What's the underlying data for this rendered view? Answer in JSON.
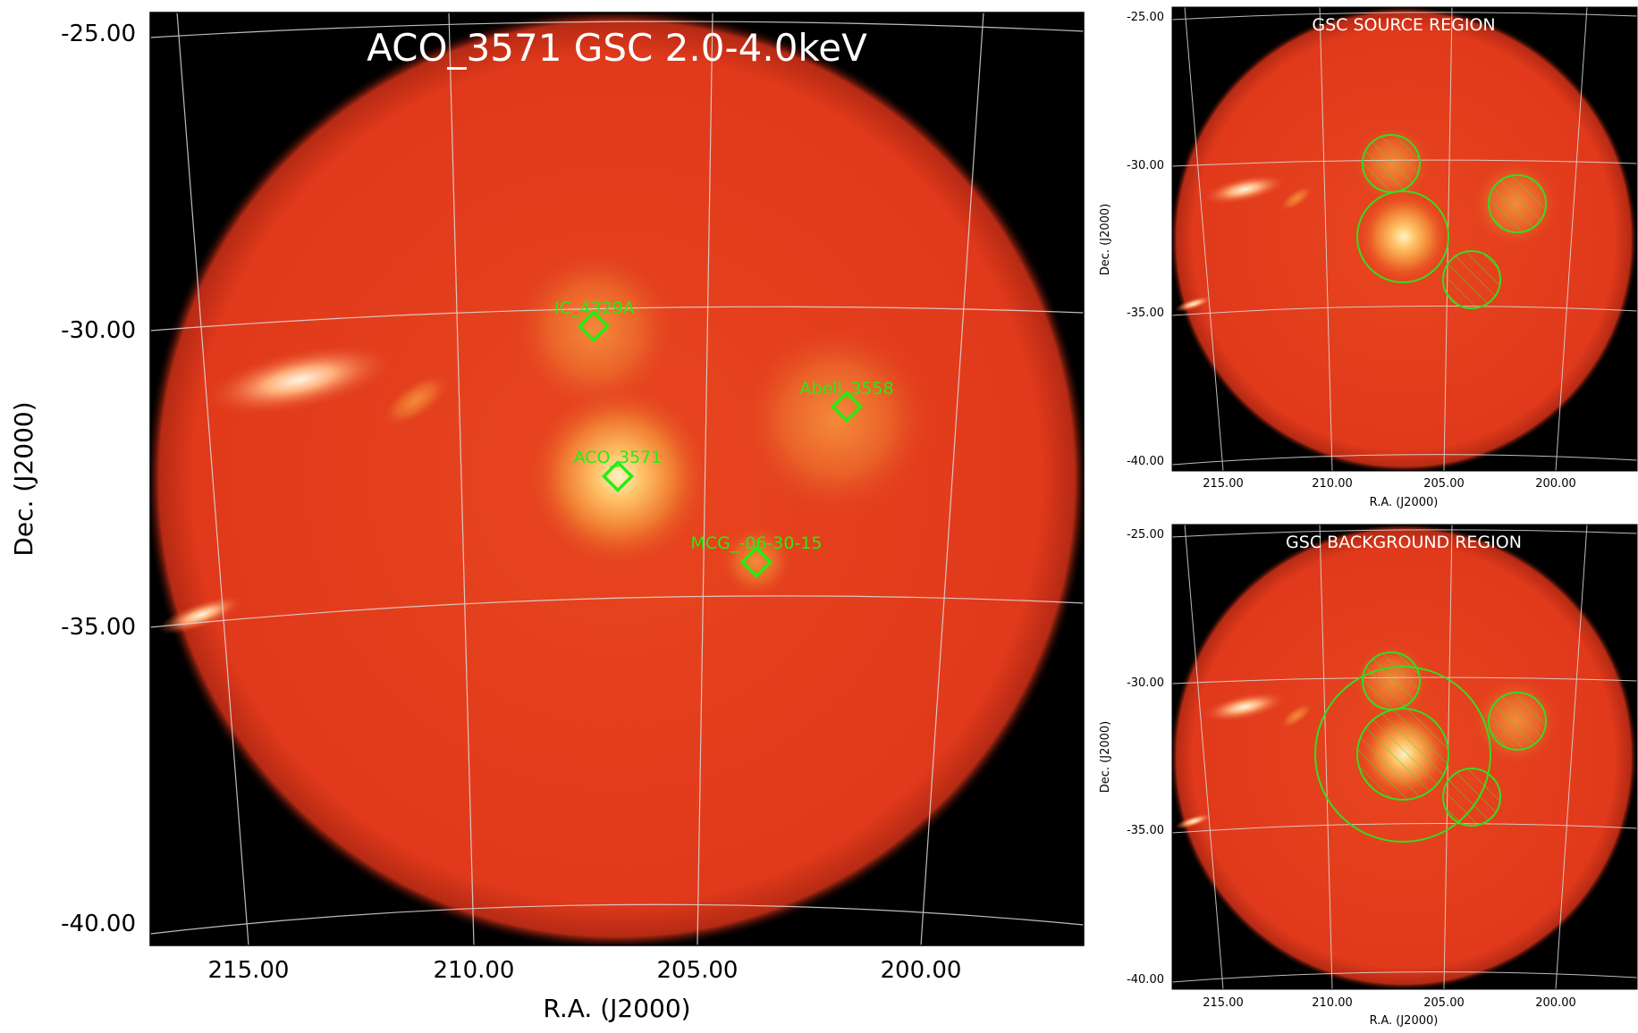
{
  "main_panel": {
    "title": "ACO_3571 GSC 2.0-4.0keV",
    "xlabel": "R.A. (J2000)",
    "ylabel": "Dec. (J2000)",
    "ra_ticks": [
      "215.00",
      "210.00",
      "205.00",
      "200.00"
    ],
    "dec_ticks": [
      "-25.00",
      "-30.00",
      "-35.00",
      "-40.00"
    ],
    "source_labels": [
      "IC_4329A",
      "Abell_3558",
      "ACO_3571",
      "MCG_-06-30-15"
    ],
    "marker_color": "#22ee11"
  },
  "source_panel": {
    "title": "GSC SOURCE REGION",
    "xlabel": "R.A. (J2000)",
    "ylabel": "Dec. (J2000)",
    "ra_ticks": [
      "215.00",
      "210.00",
      "205.00",
      "200.00"
    ],
    "dec_ticks": [
      "-25.00",
      "-30.00",
      "-35.00",
      "-40.00"
    ]
  },
  "background_panel": {
    "title": "GSC BACKGROUND REGION",
    "xlabel": "R.A. (J2000)",
    "ylabel": "Dec. (J2000)",
    "ra_ticks": [
      "215.00",
      "210.00",
      "205.00",
      "200.00"
    ],
    "dec_ticks": [
      "-25.00",
      "-30.00",
      "-35.00",
      "-40.00"
    ]
  },
  "colors": {
    "disk_base": "#e3401f",
    "region_color": "#33dd22",
    "grid_color": "#dddddd"
  }
}
